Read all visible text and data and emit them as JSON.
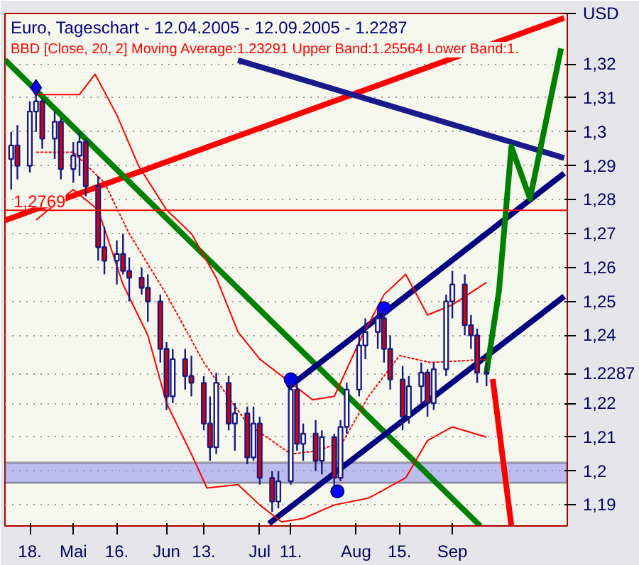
{
  "chart_data": {
    "type": "candlestick",
    "title": "Euro, Tageschart - 12.04.2005 - 12.09.2005 - 1.2287",
    "subtitle": "BBD [Close, 20, 2] Moving Average:1.23291 Upper Band:1.25564 Lower Band:1.",
    "ylabel": "USD",
    "xlim": [
      "2005-04-10",
      "2005-10-08"
    ],
    "ylim": [
      1.1838,
      1.3349
    ],
    "xticks": [
      {
        "value": "2005-04-18",
        "label": "18."
      },
      {
        "value": "2005-05-02",
        "label": "Mai"
      },
      {
        "value": "2005-05-16",
        "label": "16."
      },
      {
        "value": "2005-06-01",
        "label": "Jun"
      },
      {
        "value": "2005-06-13",
        "label": "13."
      },
      {
        "value": "2005-07-01",
        "label": "Jul"
      },
      {
        "value": "2005-07-11",
        "label": "11."
      },
      {
        "value": "2005-08-01",
        "label": "Aug"
      },
      {
        "value": "2005-08-15",
        "label": "15."
      },
      {
        "value": "2005-09-01",
        "label": "Sep"
      }
    ],
    "yticks": [
      {
        "value": 1.19,
        "label": "1,19"
      },
      {
        "value": 1.2,
        "label": "1,2"
      },
      {
        "value": 1.21,
        "label": "1,21"
      },
      {
        "value": 1.22,
        "label": "1,22"
      },
      {
        "value": 1.2287,
        "label": "1.2287"
      },
      {
        "value": 1.24,
        "label": "1,24"
      },
      {
        "value": 1.25,
        "label": "1,25"
      },
      {
        "value": 1.26,
        "label": "1,26"
      },
      {
        "value": 1.27,
        "label": "1,27"
      },
      {
        "value": 1.28,
        "label": "1,28"
      },
      {
        "value": 1.29,
        "label": "1,29"
      },
      {
        "value": 1.3,
        "label": "1,3"
      },
      {
        "value": 1.31,
        "label": "1,31"
      },
      {
        "value": 1.32,
        "label": "1,32"
      }
    ],
    "grid": "y",
    "ref_lines": [
      {
        "axis": "y",
        "value": 1.2769,
        "label": "1,2769",
        "color": "#ff0000"
      }
    ],
    "bands": [
      {
        "axis": "y",
        "from": 1.1965,
        "to": 1.2025,
        "color": "#8c8cf0"
      }
    ],
    "series": [
      {
        "type": "line",
        "color": "#ff0000",
        "line_style": "solid",
        "x": [
          "2005-04-20",
          "2005-05-04",
          "2005-05-09",
          "2005-05-16",
          "2005-05-23",
          "2005-06-01",
          "2005-06-09",
          "2005-06-17",
          "2005-06-24",
          "2005-07-01",
          "2005-07-11",
          "2005-07-18",
          "2005-07-25",
          "2005-08-02",
          "2005-08-10",
          "2005-08-17",
          "2005-08-24",
          "2005-09-01",
          "2005-09-12"
        ],
        "values": [
          1.311,
          1.311,
          1.317,
          1.305,
          1.29,
          1.277,
          1.27,
          1.257,
          1.241,
          1.233,
          1.226,
          1.221,
          1.222,
          1.238,
          1.252,
          1.258,
          1.246,
          1.249,
          1.2556
        ]
      },
      {
        "type": "line",
        "color": "#ff0000",
        "line_style": "dashed",
        "x": [
          "2005-04-20",
          "2005-05-02",
          "2005-05-12",
          "2005-05-20",
          "2005-06-01",
          "2005-06-13",
          "2005-06-27",
          "2005-07-11",
          "2005-07-20",
          "2005-07-28",
          "2005-08-05",
          "2005-08-15",
          "2005-08-25",
          "2005-09-12"
        ],
        "values": [
          1.294,
          1.294,
          1.285,
          1.27,
          1.252,
          1.232,
          1.214,
          1.205,
          1.206,
          1.209,
          1.222,
          1.234,
          1.232,
          1.2329
        ]
      },
      {
        "type": "line",
        "color": "#ff0000",
        "line_style": "solid",
        "x": [
          "2005-04-20",
          "2005-05-02",
          "2005-05-10",
          "2005-05-18",
          "2005-05-26",
          "2005-06-01",
          "2005-06-09",
          "2005-06-14",
          "2005-06-24",
          "2005-07-01",
          "2005-07-08",
          "2005-07-15",
          "2005-07-25",
          "2005-08-05",
          "2005-08-17",
          "2005-08-24",
          "2005-09-01",
          "2005-09-12"
        ],
        "values": [
          1.274,
          1.283,
          1.277,
          1.255,
          1.24,
          1.22,
          1.205,
          1.195,
          1.196,
          1.19,
          1.185,
          1.186,
          1.19,
          1.192,
          1.198,
          1.209,
          1.213,
          1.21
        ]
      },
      {
        "type": "line",
        "color": "#ff0000",
        "line_style": "solid",
        "x": [
          "2005-04-10",
          "2005-10-07"
        ],
        "values": [
          1.2739,
          1.3336
        ]
      },
      {
        "type": "line",
        "color": "#1a1a8c",
        "line_style": "solid",
        "x": [
          "2005-06-24",
          "2005-10-07"
        ],
        "values": [
          1.3211,
          1.2923
        ]
      },
      {
        "type": "line",
        "color": "#008000",
        "line_style": "solid",
        "x": [
          "2005-04-10",
          "2005-09-10"
        ],
        "values": [
          1.3212,
          1.1838
        ]
      },
      {
        "type": "line",
        "color": "#000080",
        "line_style": "solid",
        "x": [
          "2005-07-04",
          "2005-10-07"
        ],
        "values": [
          1.1845,
          1.2515
        ]
      },
      {
        "type": "line",
        "color": "#000080",
        "line_style": "solid",
        "x": [
          "2005-07-10",
          "2005-10-07"
        ],
        "values": [
          1.2245,
          1.2878
        ]
      },
      {
        "type": "line",
        "color": "#008000",
        "line_style": "solid",
        "x": [
          "2005-09-12",
          "2005-09-16",
          "2005-09-20",
          "2005-09-26",
          "2005-10-06"
        ],
        "values": [
          1.229,
          1.253,
          1.2956,
          1.2803,
          1.3246
        ]
      },
      {
        "type": "line",
        "color": "#ff0000",
        "line_style": "solid",
        "x": [
          "2005-09-14",
          "2005-09-20"
        ],
        "values": [
          1.2271,
          1.1838
        ]
      },
      {
        "type": "candlestick",
        "color": "#1a1a80",
        "x": [
          "2005-04-12",
          "2005-04-14",
          "2005-04-18",
          "2005-04-20",
          "2005-04-22",
          "2005-04-26",
          "2005-04-28",
          "2005-05-02",
          "2005-05-04",
          "2005-05-06",
          "2005-05-10",
          "2005-05-12",
          "2005-05-16",
          "2005-05-18",
          "2005-05-20",
          "2005-05-24",
          "2005-05-26",
          "2005-05-30",
          "2005-06-01",
          "2005-06-03",
          "2005-06-07",
          "2005-06-09",
          "2005-06-13",
          "2005-06-15",
          "2005-06-17",
          "2005-06-21",
          "2005-06-23",
          "2005-06-27",
          "2005-06-29",
          "2005-07-01",
          "2005-07-05",
          "2005-07-07",
          "2005-07-11",
          "2005-07-13",
          "2005-07-15",
          "2005-07-19",
          "2005-07-21",
          "2005-07-25",
          "2005-07-27",
          "2005-07-29",
          "2005-08-02",
          "2005-08-04",
          "2005-08-08",
          "2005-08-10",
          "2005-08-12",
          "2005-08-16",
          "2005-08-18",
          "2005-08-22",
          "2005-08-24",
          "2005-08-26",
          "2005-08-30",
          "2005-09-01",
          "2005-09-05",
          "2005-09-07",
          "2005-09-09",
          "2005-09-12"
        ],
        "ohlc": [
          [
            1.292,
            1.3,
            1.283,
            1.296
          ],
          [
            1.296,
            1.302,
            1.286,
            1.29
          ],
          [
            1.29,
            1.309,
            1.288,
            1.306
          ],
          [
            1.306,
            1.313,
            1.3,
            1.309
          ],
          [
            1.309,
            1.31,
            1.295,
            1.298
          ],
          [
            1.298,
            1.306,
            1.292,
            1.303
          ],
          [
            1.303,
            1.304,
            1.286,
            1.289
          ],
          [
            1.289,
            1.297,
            1.285,
            1.293
          ],
          [
            1.293,
            1.3,
            1.287,
            1.297
          ],
          [
            1.297,
            1.298,
            1.281,
            1.284
          ],
          [
            1.284,
            1.287,
            1.262,
            1.266
          ],
          [
            1.266,
            1.272,
            1.258,
            1.262
          ],
          [
            1.262,
            1.268,
            1.255,
            1.264
          ],
          [
            1.264,
            1.27,
            1.258,
            1.259
          ],
          [
            1.259,
            1.263,
            1.25,
            1.257
          ],
          [
            1.257,
            1.26,
            1.252,
            1.254
          ],
          [
            1.254,
            1.258,
            1.244,
            1.25
          ],
          [
            1.25,
            1.252,
            1.232,
            1.236
          ],
          [
            1.236,
            1.238,
            1.218,
            1.222
          ],
          [
            1.222,
            1.236,
            1.22,
            1.233
          ],
          [
            1.233,
            1.236,
            1.224,
            1.228
          ],
          [
            1.228,
            1.234,
            1.222,
            1.226
          ],
          [
            1.226,
            1.228,
            1.212,
            1.214
          ],
          [
            1.214,
            1.222,
            1.203,
            1.207
          ],
          [
            1.207,
            1.229,
            1.205,
            1.226
          ],
          [
            1.226,
            1.228,
            1.212,
            1.214
          ],
          [
            1.214,
            1.22,
            1.206,
            1.217
          ],
          [
            1.217,
            1.219,
            1.202,
            1.204
          ],
          [
            1.204,
            1.219,
            1.203,
            1.214
          ],
          [
            1.214,
            1.216,
            1.196,
            1.198
          ],
          [
            1.198,
            1.2,
            1.188,
            1.191
          ],
          [
            1.191,
            1.2,
            1.189,
            1.197
          ],
          [
            1.197,
            1.227,
            1.196,
            1.224
          ],
          [
            1.224,
            1.226,
            1.206,
            1.208
          ],
          [
            1.208,
            1.214,
            1.203,
            1.211
          ],
          [
            1.211,
            1.215,
            1.2,
            1.203
          ],
          [
            1.203,
            1.212,
            1.199,
            1.21
          ],
          [
            1.21,
            1.211,
            1.194,
            1.198
          ],
          [
            1.198,
            1.215,
            1.197,
            1.213
          ],
          [
            1.213,
            1.226,
            1.211,
            1.224
          ],
          [
            1.224,
            1.24,
            1.222,
            1.237
          ],
          [
            1.237,
            1.245,
            1.233,
            1.241
          ],
          [
            1.241,
            1.248,
            1.236,
            1.245
          ],
          [
            1.245,
            1.248,
            1.232,
            1.236
          ],
          [
            1.236,
            1.24,
            1.224,
            1.227
          ],
          [
            1.227,
            1.231,
            1.212,
            1.216
          ],
          [
            1.216,
            1.228,
            1.214,
            1.225
          ],
          [
            1.225,
            1.232,
            1.22,
            1.229
          ],
          [
            1.229,
            1.23,
            1.216,
            1.22
          ],
          [
            1.22,
            1.232,
            1.218,
            1.23
          ],
          [
            1.23,
            1.252,
            1.228,
            1.25
          ],
          [
            1.25,
            1.259,
            1.245,
            1.255
          ],
          [
            1.255,
            1.258,
            1.24,
            1.243
          ],
          [
            1.243,
            1.246,
            1.236,
            1.24
          ],
          [
            1.24,
            1.242,
            1.226,
            1.229
          ],
          [
            1.229,
            1.232,
            1.225,
            1.2287
          ]
        ]
      },
      {
        "type": "scatter",
        "color": "#0000ff",
        "marker": "diamond",
        "x": [
          "2005-04-20"
        ],
        "values": [
          1.313
        ]
      },
      {
        "type": "scatter",
        "color": "#0000ff",
        "marker": "circle",
        "x": [
          "2005-07-11",
          "2005-07-26",
          "2005-08-10"
        ],
        "values": [
          1.227,
          1.194,
          1.248
        ]
      }
    ]
  }
}
